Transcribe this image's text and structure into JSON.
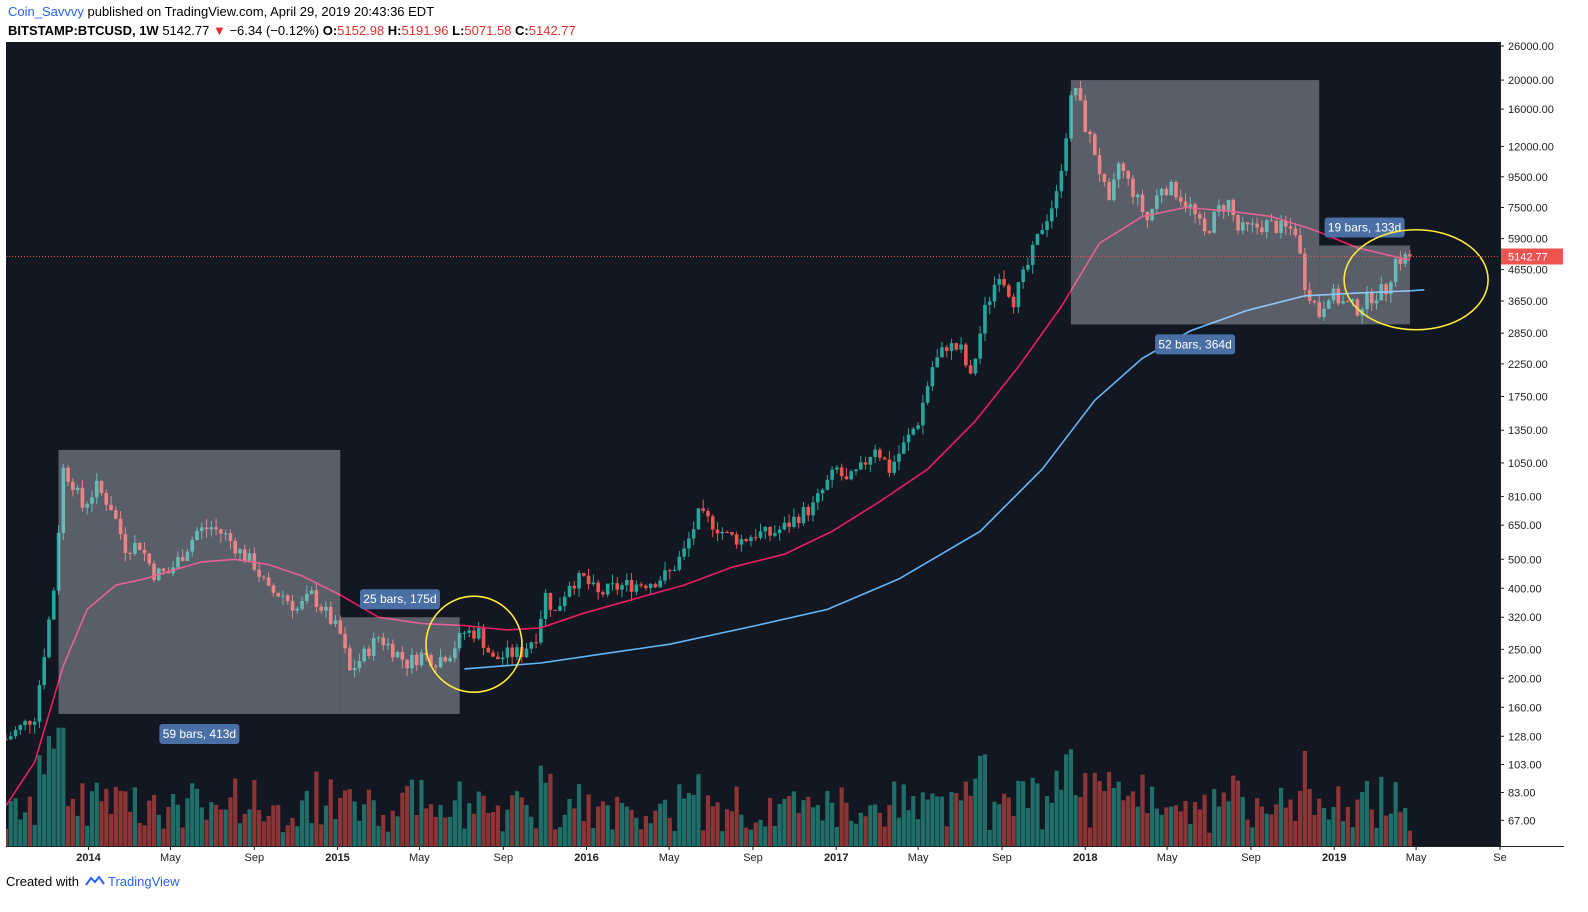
{
  "header": {
    "author": "Coin_Savvvy",
    "published": " published on TradingView.com, April 29, 2019 20:43:36 EDT",
    "symbol": "BITSTAMP:BTCUSD, 1W",
    "price": "5142.77",
    "change": "−6.34 (−0.12%)",
    "o_label": "O:",
    "o_value": "5152.98",
    "h_label": "H:",
    "h_value": "5191.96",
    "l_label": "L:",
    "l_value": "5071.58",
    "c_label": "C:",
    "c_value": "5142.77",
    "down_arrow": "▼"
  },
  "footer": {
    "created_with": "Created with",
    "brand": "TradingView",
    "logo_icon": "tradingview-logo-icon"
  },
  "colors": {
    "background": "#131722",
    "up": "#26a69a",
    "down": "#ef5350",
    "vol_up": "#1f6e67",
    "vol_down": "#8c3536",
    "ma_fast": "#e91e63",
    "ma_slow": "#64b5f6",
    "box": "#dfe3ea",
    "box_label": "#4a6fa5",
    "circle": "#ffeb3b",
    "price_line": "#ef5350",
    "axis_text": "#b2b5be"
  },
  "chart_data": {
    "type": "candlestick",
    "symbol": "BITSTAMP:BTCUSD",
    "interval": "1W",
    "y_scale": "log",
    "ylim": [
      55,
      26000
    ],
    "xlim": [
      "2013-09-02",
      "2019-09-01"
    ],
    "grid": false,
    "y_ticks": [
      26000,
      20000,
      16000,
      12000,
      9500,
      7500,
      5900,
      4650,
      3650,
      2850,
      2250,
      1750,
      1350,
      1050,
      810,
      650,
      500,
      400,
      320,
      250,
      200,
      160,
      128,
      103,
      83,
      67
    ],
    "y_tick_labels": [
      "26000.00",
      "20000.00",
      "16000.00",
      "12000.00",
      "9500.00",
      "7500.00",
      "5900.00",
      "4650.00",
      "3650.00",
      "2850.00",
      "2250.00",
      "1750.00",
      "1350.00",
      "1050.00",
      "810.00",
      "650.00",
      "500.00",
      "400.00",
      "320.00",
      "250.00",
      "200.00",
      "160.00",
      "128.00",
      "103.00",
      "83.00",
      "67.00"
    ],
    "x_ticks": [
      {
        "date": "2014-01-01",
        "label": "2014"
      },
      {
        "date": "2014-05-01",
        "label": "May"
      },
      {
        "date": "2014-09-01",
        "label": "Sep"
      },
      {
        "date": "2015-01-01",
        "label": "2015"
      },
      {
        "date": "2015-05-01",
        "label": "May"
      },
      {
        "date": "2015-09-01",
        "label": "Sep"
      },
      {
        "date": "2016-01-01",
        "label": "2016"
      },
      {
        "date": "2016-05-01",
        "label": "May"
      },
      {
        "date": "2016-09-01",
        "label": "Sep"
      },
      {
        "date": "2017-01-01",
        "label": "2017"
      },
      {
        "date": "2017-05-01",
        "label": "May"
      },
      {
        "date": "2017-09-01",
        "label": "Sep"
      },
      {
        "date": "2018-01-01",
        "label": "2018"
      },
      {
        "date": "2018-05-01",
        "label": "May"
      },
      {
        "date": "2018-09-01",
        "label": "Sep"
      },
      {
        "date": "2019-01-01",
        "label": "2019"
      },
      {
        "date": "2019-05-01",
        "label": "May"
      },
      {
        "date": "2019-09-01",
        "label": "Se"
      }
    ],
    "last_price": 5142.77,
    "last_price_label": "5142.77",
    "price_path": [
      [
        "2013-09-02",
        125
      ],
      [
        "2013-10-14",
        150
      ],
      [
        "2013-11-11",
        400
      ],
      [
        "2013-11-25",
        1000
      ],
      [
        "2013-12-09",
        900
      ],
      [
        "2013-12-23",
        750
      ],
      [
        "2014-01-13",
        870
      ],
      [
        "2014-02-03",
        750
      ],
      [
        "2014-02-24",
        550
      ],
      [
        "2014-03-17",
        560
      ],
      [
        "2014-04-07",
        450
      ],
      [
        "2014-04-28",
        450
      ],
      [
        "2014-05-19",
        520
      ],
      [
        "2014-06-09",
        620
      ],
      [
        "2014-06-30",
        640
      ],
      [
        "2014-07-21",
        600
      ],
      [
        "2014-08-11",
        530
      ],
      [
        "2014-09-01",
        480
      ],
      [
        "2014-09-22",
        390
      ],
      [
        "2014-10-13",
        380
      ],
      [
        "2014-11-03",
        340
      ],
      [
        "2014-11-24",
        380
      ],
      [
        "2014-12-15",
        330
      ],
      [
        "2015-01-05",
        280
      ],
      [
        "2015-01-19",
        210
      ],
      [
        "2015-02-09",
        240
      ],
      [
        "2015-03-02",
        275
      ],
      [
        "2015-03-23",
        250
      ],
      [
        "2015-04-13",
        225
      ],
      [
        "2015-05-04",
        240
      ],
      [
        "2015-05-25",
        230
      ],
      [
        "2015-06-15",
        245
      ],
      [
        "2015-07-06",
        285
      ],
      [
        "2015-07-27",
        285
      ],
      [
        "2015-08-17",
        230
      ],
      [
        "2015-09-07",
        240
      ],
      [
        "2015-09-28",
        245
      ],
      [
        "2015-10-19",
        280
      ],
      [
        "2015-11-02",
        380
      ],
      [
        "2015-11-16",
        330
      ],
      [
        "2015-12-07",
        420
      ],
      [
        "2015-12-28",
        430
      ],
      [
        "2016-01-18",
        380
      ],
      [
        "2016-02-08",
        400
      ],
      [
        "2016-02-29",
        410
      ],
      [
        "2016-03-21",
        415
      ],
      [
        "2016-04-11",
        425
      ],
      [
        "2016-05-02",
        450
      ],
      [
        "2016-05-23",
        530
      ],
      [
        "2016-06-13",
        700
      ],
      [
        "2016-07-04",
        660
      ],
      [
        "2016-07-25",
        600
      ],
      [
        "2016-08-15",
        580
      ],
      [
        "2016-09-05",
        610
      ],
      [
        "2016-09-26",
        605
      ],
      [
        "2016-10-17",
        640
      ],
      [
        "2016-11-07",
        700
      ],
      [
        "2016-11-28",
        750
      ],
      [
        "2016-12-19",
        900
      ],
      [
        "2017-01-02",
        1000
      ],
      [
        "2017-01-16",
        900
      ],
      [
        "2017-02-06",
        1000
      ],
      [
        "2017-02-27",
        1200
      ],
      [
        "2017-03-20",
        1000
      ],
      [
        "2017-04-10",
        1200
      ],
      [
        "2017-05-01",
        1450
      ],
      [
        "2017-05-22",
        2200
      ],
      [
        "2017-06-12",
        2600
      ],
      [
        "2017-07-03",
        2500
      ],
      [
        "2017-07-17",
        2000
      ],
      [
        "2017-08-07",
        3400
      ],
      [
        "2017-08-28",
        4600
      ],
      [
        "2017-09-18",
        3700
      ],
      [
        "2017-10-09",
        4800
      ],
      [
        "2017-10-30",
        6500
      ],
      [
        "2017-11-20",
        8200
      ],
      [
        "2017-12-11",
        17000
      ],
      [
        "2017-12-18",
        19000
      ],
      [
        "2018-01-01",
        14000
      ],
      [
        "2018-01-15",
        11500
      ],
      [
        "2018-02-05",
        7500
      ],
      [
        "2018-02-19",
        10500
      ],
      [
        "2018-03-12",
        8500
      ],
      [
        "2018-04-02",
        6800
      ],
      [
        "2018-04-23",
        8900
      ],
      [
        "2018-05-14",
        8500
      ],
      [
        "2018-06-04",
        7500
      ],
      [
        "2018-06-25",
        6100
      ],
      [
        "2018-07-16",
        7400
      ],
      [
        "2018-07-30",
        7800
      ],
      [
        "2018-08-13",
        6300
      ],
      [
        "2018-09-03",
        6400
      ],
      [
        "2018-09-24",
        6600
      ],
      [
        "2018-10-15",
        6400
      ],
      [
        "2018-11-05",
        6300
      ],
      [
        "2018-11-19",
        4200
      ],
      [
        "2018-12-10",
        3300
      ],
      [
        "2018-12-24",
        3900
      ],
      [
        "2019-01-14",
        3600
      ],
      [
        "2019-02-04",
        3450
      ],
      [
        "2019-02-25",
        3800
      ],
      [
        "2019-03-18",
        4000
      ],
      [
        "2019-04-01",
        5000
      ],
      [
        "2019-04-22",
        5142.77
      ]
    ],
    "volume_range": [
      0,
      140
    ],
    "series": [
      {
        "name": "",
        "type": "line",
        "color_key": "ma_fast",
        "points": [
          [
            "2013-09-02",
            75
          ],
          [
            "2013-10-14",
            105
          ],
          [
            "2013-11-25",
            220
          ],
          [
            "2013-12-30",
            340
          ],
          [
            "2014-02-10",
            410
          ],
          [
            "2014-03-24",
            430
          ],
          [
            "2014-05-05",
            460
          ],
          [
            "2014-06-16",
            490
          ],
          [
            "2014-08-04",
            500
          ],
          [
            "2014-09-22",
            480
          ],
          [
            "2014-11-10",
            440
          ],
          [
            "2015-01-05",
            380
          ],
          [
            "2015-03-02",
            320
          ],
          [
            "2015-05-04",
            305
          ],
          [
            "2015-07-06",
            300
          ],
          [
            "2015-09-07",
            290
          ],
          [
            "2015-10-26",
            295
          ],
          [
            "2015-12-28",
            330
          ],
          [
            "2016-03-14",
            370
          ],
          [
            "2016-05-23",
            410
          ],
          [
            "2016-08-01",
            470
          ],
          [
            "2016-10-17",
            520
          ],
          [
            "2016-12-26",
            620
          ],
          [
            "2017-03-06",
            780
          ],
          [
            "2017-05-15",
            1000
          ],
          [
            "2017-07-24",
            1450
          ],
          [
            "2017-09-25",
            2200
          ],
          [
            "2017-11-27",
            3500
          ],
          [
            "2018-01-22",
            5700
          ],
          [
            "2018-03-26",
            7000
          ],
          [
            "2018-05-28",
            7500
          ],
          [
            "2018-07-30",
            7300
          ],
          [
            "2018-10-01",
            7000
          ],
          [
            "2018-12-03",
            6300
          ],
          [
            "2019-02-04",
            5500
          ],
          [
            "2019-04-22",
            5000
          ]
        ]
      },
      {
        "name": "",
        "type": "line",
        "color_key": "ma_slow",
        "points": [
          [
            "2015-07-06",
            215
          ],
          [
            "2015-10-26",
            225
          ],
          [
            "2016-01-18",
            240
          ],
          [
            "2016-05-02",
            260
          ],
          [
            "2016-09-05",
            300
          ],
          [
            "2016-12-19",
            340
          ],
          [
            "2017-04-03",
            430
          ],
          [
            "2017-07-31",
            620
          ],
          [
            "2017-10-30",
            1000
          ],
          [
            "2018-01-15",
            1700
          ],
          [
            "2018-03-26",
            2350
          ],
          [
            "2018-06-04",
            2900
          ],
          [
            "2018-08-27",
            3400
          ],
          [
            "2018-11-19",
            3800
          ],
          [
            "2019-02-04",
            3880
          ],
          [
            "2019-04-22",
            3950
          ],
          [
            "2019-05-13",
            3980
          ]
        ]
      }
    ],
    "annotations": [
      {
        "type": "range_box",
        "from": "2013-11-18",
        "to": "2015-01-05",
        "high": 1160,
        "low": 152,
        "label": "59 bars, 413d",
        "label_position": "below"
      },
      {
        "type": "range_box",
        "from": "2015-01-05",
        "to": "2015-06-29",
        "high": 320,
        "low": 152,
        "label": "25 bars, 175d",
        "label_position": "above"
      },
      {
        "type": "range_box",
        "from": "2017-12-11",
        "to": "2018-12-10",
        "high": 20000,
        "low": 3050,
        "label": "52 bars, 364d",
        "label_position": "below"
      },
      {
        "type": "range_box",
        "from": "2018-12-10",
        "to": "2019-04-22",
        "high": 5600,
        "low": 3050,
        "label": "19 bars, 133d",
        "label_position": "above"
      }
    ]
  }
}
